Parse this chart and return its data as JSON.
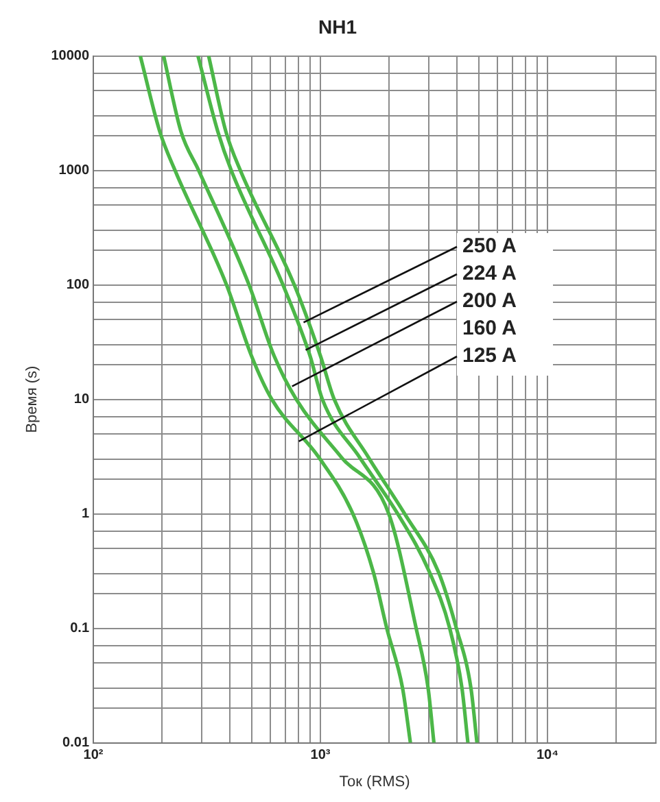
{
  "chart_data": {
    "type": "line",
    "title": "NH1",
    "xlabel": "Ток (RMS)",
    "ylabel": "Время (s)",
    "log": "xy",
    "grid": true,
    "legend": false,
    "marker": "none",
    "xlim": [
      100,
      30000
    ],
    "xticks": [
      {
        "value": 100,
        "label": "10²"
      },
      {
        "value": 200,
        "label": null
      },
      {
        "value": 300,
        "label": null
      },
      {
        "value": 400,
        "label": null
      },
      {
        "value": 500,
        "label": null
      },
      {
        "value": 600,
        "label": null
      },
      {
        "value": 700,
        "label": null
      },
      {
        "value": 800,
        "label": null
      },
      {
        "value": 900,
        "label": null
      },
      {
        "value": 1000,
        "label": "10³"
      },
      {
        "value": 2000,
        "label": null
      },
      {
        "value": 3000,
        "label": null
      },
      {
        "value": 4000,
        "label": null
      },
      {
        "value": 5000,
        "label": null
      },
      {
        "value": 6000,
        "label": null
      },
      {
        "value": 7000,
        "label": null
      },
      {
        "value": 8000,
        "label": null
      },
      {
        "value": 9000,
        "label": null
      },
      {
        "value": 10000,
        "label": "10⁴"
      },
      {
        "value": 20000,
        "label": null
      },
      {
        "value": 30000,
        "label": null
      }
    ],
    "ylim": [
      0.01,
      10000
    ],
    "yticks": [
      {
        "value": 0.01,
        "label": "0.01"
      },
      {
        "value": 0.02,
        "label": null
      },
      {
        "value": 0.03,
        "label": null
      },
      {
        "value": 0.05,
        "label": null
      },
      {
        "value": 0.07,
        "label": null
      },
      {
        "value": 0.1,
        "label": "0.1"
      },
      {
        "value": 0.2,
        "label": null
      },
      {
        "value": 0.3,
        "label": null
      },
      {
        "value": 0.5,
        "label": null
      },
      {
        "value": 0.7,
        "label": null
      },
      {
        "value": 1,
        "label": "1"
      },
      {
        "value": 2,
        "label": null
      },
      {
        "value": 3,
        "label": null
      },
      {
        "value": 5,
        "label": null
      },
      {
        "value": 7,
        "label": null
      },
      {
        "value": 10,
        "label": "10"
      },
      {
        "value": 20,
        "label": null
      },
      {
        "value": 30,
        "label": null
      },
      {
        "value": 50,
        "label": null
      },
      {
        "value": 70,
        "label": null
      },
      {
        "value": 100,
        "label": "100"
      },
      {
        "value": 200,
        "label": null
      },
      {
        "value": 300,
        "label": null
      },
      {
        "value": 500,
        "label": null
      },
      {
        "value": 700,
        "label": null
      },
      {
        "value": 1000,
        "label": "1000"
      },
      {
        "value": 2000,
        "label": null
      },
      {
        "value": 3000,
        "label": null
      },
      {
        "value": 5000,
        "label": null
      },
      {
        "value": 7000,
        "label": null
      },
      {
        "value": 10000,
        "label": "10000"
      }
    ],
    "series": [
      {
        "color": "#4cb748",
        "x": [
          161,
          196,
          229,
          386,
          497,
          611,
          986,
          1390,
          1710,
          1960,
          2300,
          2490
        ],
        "values": [
          10000,
          2200,
          1000,
          100,
          24,
          10,
          3.1,
          1,
          0.31,
          0.1,
          0.03,
          0.01
        ]
      },
      {
        "color": "#4cb748",
        "x": [
          204,
          243,
          291,
          485,
          625,
          783,
          1240,
          2000,
          2640,
          2980,
          3160
        ],
        "values": [
          10000,
          2200,
          1000,
          100,
          24,
          10,
          3.1,
          1,
          0.1,
          0.03,
          0.01
        ]
      },
      {
        "color": "#4cb748",
        "x": [
          289,
          353,
          405,
          684,
          900,
          1020,
          1490,
          2190,
          3020,
          3710,
          4200,
          4460
        ],
        "values": [
          10000,
          2200,
          1000,
          100,
          24,
          10,
          3.1,
          1,
          0.31,
          0.1,
          0.03,
          0.01
        ]
      },
      {
        "color": "#4cb748",
        "x": [
          322,
          383,
          444,
          767,
          1000,
          1150,
          1630,
          2350,
          3310,
          3970,
          4600,
          4890
        ],
        "values": [
          10000,
          2200,
          1000,
          100,
          24,
          10,
          3.1,
          1,
          0.31,
          0.1,
          0.03,
          0.01
        ]
      }
    ],
    "annotations": [
      {
        "text": "250 A",
        "x": 843,
        "y": 47
      },
      {
        "text": "224 A",
        "x": 861,
        "y": 27
      },
      {
        "text": "200 A",
        "x": 750,
        "y": 13
      },
      "160 A",
      {
        "text": "125 A",
        "x": 803,
        "y": 4.3
      }
    ]
  }
}
